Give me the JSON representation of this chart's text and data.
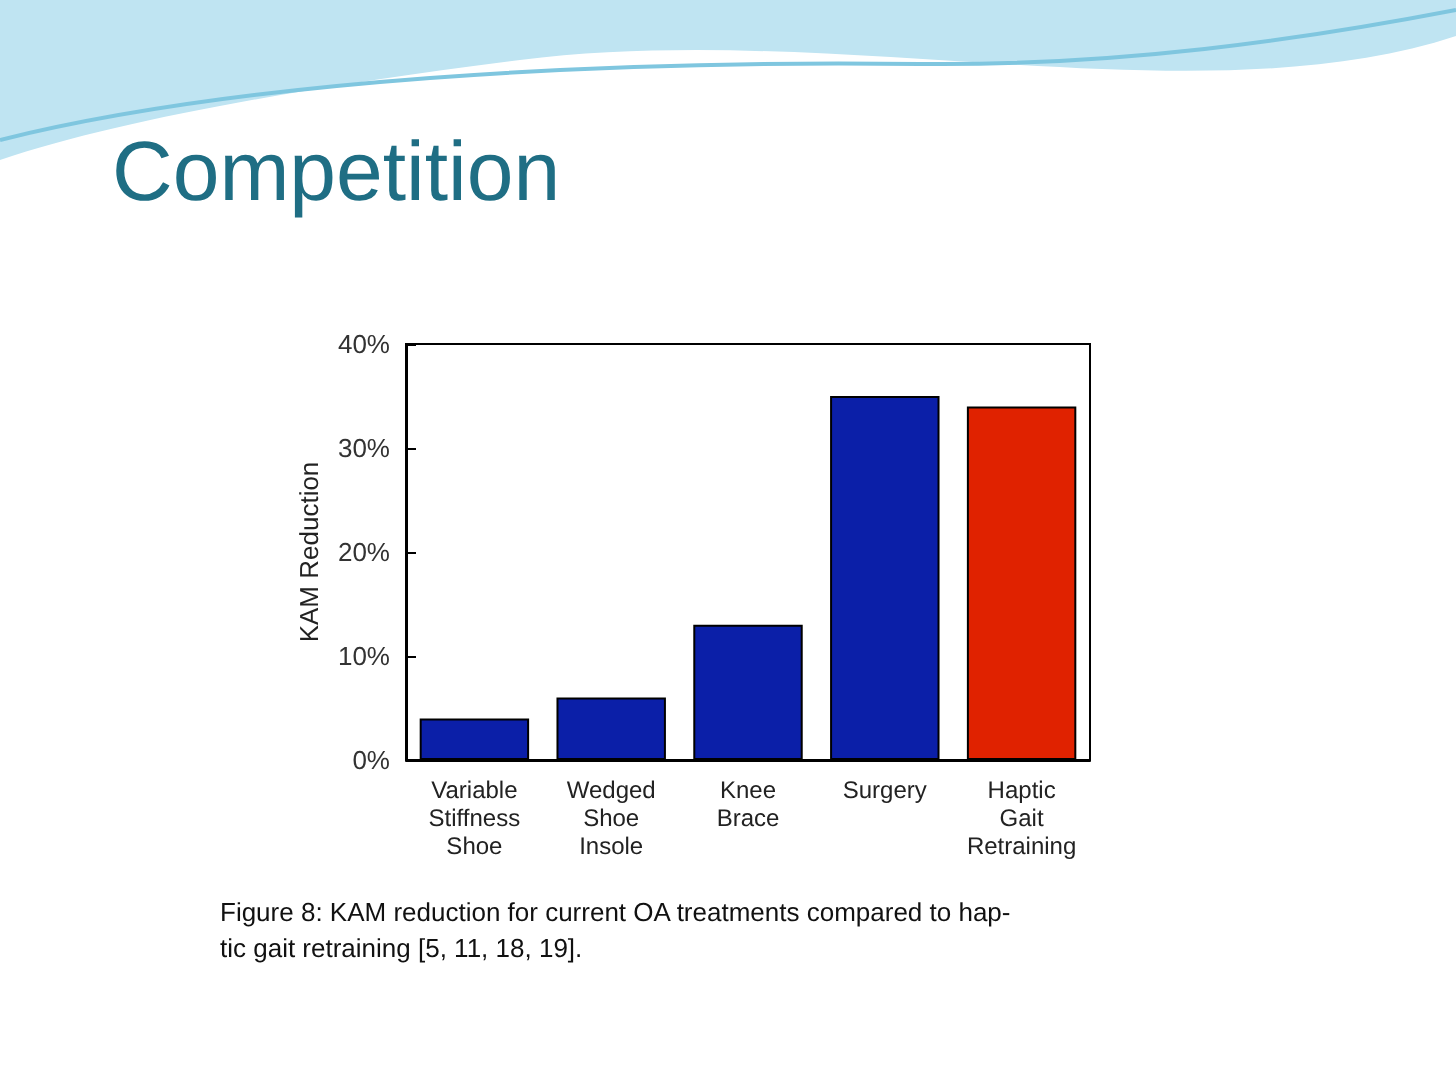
{
  "chart_data": {
    "type": "bar",
    "title": "Competition",
    "ylabel": "KAM Reduction",
    "categories": [
      "Variable\nStiffness\nShoe",
      "Wedged\nShoe\nInsole",
      "Knee\nBrace",
      "Surgery",
      "Haptic\nGait\nRetraining"
    ],
    "values": [
      4,
      6,
      13,
      35,
      34
    ],
    "colors": [
      "#0b1fa8",
      "#0b1fa8",
      "#0b1fa8",
      "#0b1fa8",
      "#e02200"
    ],
    "ylim": [
      0,
      40
    ],
    "yticks": [
      {
        "value": 0,
        "label": "0%"
      },
      {
        "value": 10,
        "label": "10%"
      },
      {
        "value": 20,
        "label": "20%"
      },
      {
        "value": 30,
        "label": "30%"
      },
      {
        "value": 40,
        "label": "40%"
      }
    ],
    "grid": false,
    "annotations": [
      "Figure 8: KAM reduction for current OA treatments compared to hap-\ntic gait retraining [5, 11, 18, 19]."
    ]
  }
}
